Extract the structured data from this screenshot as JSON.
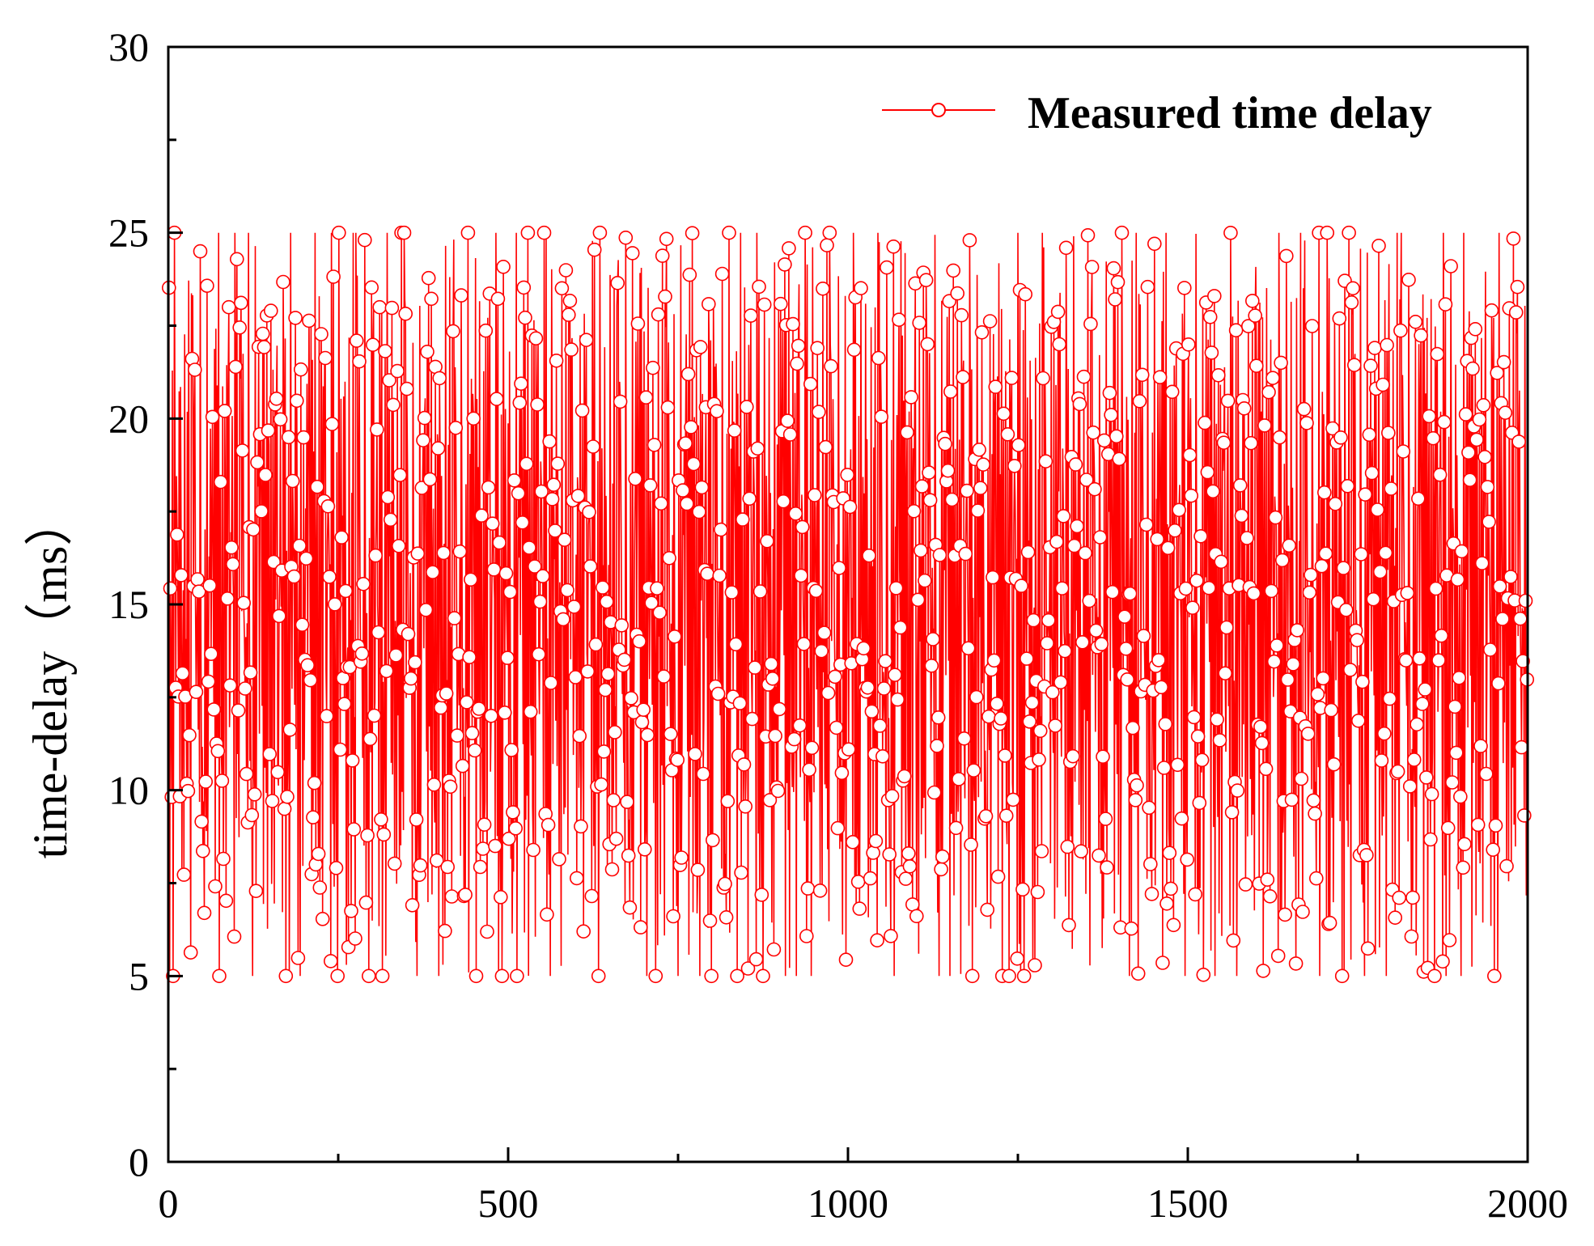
{
  "chart_data": {
    "type": "line",
    "title": "",
    "xlabel": "",
    "ylabel": "time-delay（ms）",
    "xlim": [
      0,
      2000
    ],
    "ylim": [
      0,
      30
    ],
    "x_ticks": [
      "0",
      "500",
      "1000",
      "1500",
      "2000"
    ],
    "y_ticks": [
      "0",
      "5",
      "10",
      "15",
      "20",
      "25",
      "30"
    ],
    "grid": false,
    "legend": {
      "position": "top-right",
      "entries": [
        "Measured time delay"
      ]
    },
    "colors": {
      "series": "#ff0000",
      "marker_fill": "#ffffff",
      "axis": "#000000"
    },
    "series": [
      {
        "name": "Measured time delay",
        "marker": "open-circle",
        "x_start": 1,
        "x_step": 1,
        "y_min_observed": 5,
        "y_max_observed": 25,
        "values": [
          22.9,
          12.4,
          17.1,
          24.0,
          10.6,
          21.8,
          13.2,
          5.6,
          15.2,
          20.1,
          10.2,
          24.3,
          11.0,
          18.2,
          14.9,
          8.3,
          22.4,
          13.8,
          6.1,
          19.7,
          16.5,
          10.4,
          23.7,
          12.1,
          7.0,
          17.8,
          14.3,
          21.2,
          9.1,
          15.9,
          11.6,
          24.1,
          18.5,
          6.4,
          13.0,
          20.6,
          8.8,
          16.2,
          22.1,
          10.9,
          14.7,
          19.3,
          5.2,
          12.8,
          17.4,
          23.3,
          9.6,
          15.5,
          20.9,
          11.3,
          7.6,
          18.9,
          13.6,
          21.7,
          6.8,
          16.8,
          24.6,
          10.1,
          14.1,
          19.9,
          8.2,
          22.8,
          12.5,
          17.0,
          5.9,
          15.1,
          20.3,
          9.8,
          13.4,
          23.0,
          11.8,
          18.0,
          7.3,
          16.1,
          21.4,
          14.6,
          6.2,
          19.1,
          10.7,
          24.8,
          12.9,
          17.6,
          8.5,
          22.5,
          15.7,
          9.3,
          20.7,
          13.1,
          5.4,
          18.7,
          11.1,
          16.6,
          23.9,
          7.8,
          14.4,
          21.0,
          10.3,
          19.5,
          12.2,
          6.6
        ],
        "note": "2000 samples (x = 1..2000), values uniformly scattered between 5 and 25 ms"
      }
    ]
  }
}
